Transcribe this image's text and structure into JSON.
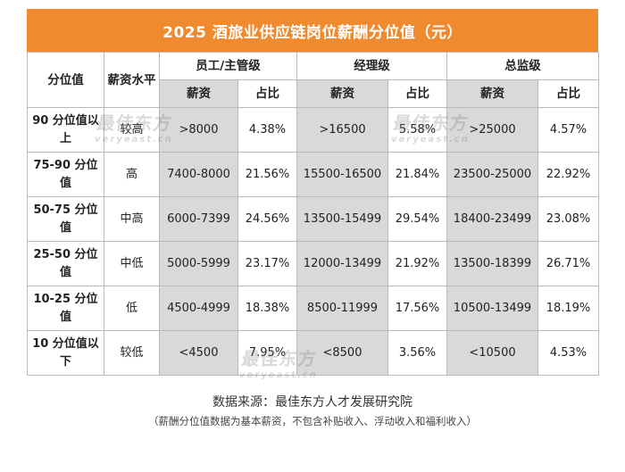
{
  "title": "2025 酒旅业供应链岗位薪酬分位值（元）",
  "header": {
    "percentile": "分位值",
    "level": "薪资水平",
    "groups": [
      "员工/主管级",
      "经理级",
      "总监级"
    ],
    "salary": "薪资",
    "ratio": "占比"
  },
  "rows": [
    {
      "percentile": "90 分位值以上",
      "level": "较高",
      "v": [
        ">8000",
        "4.38%",
        ">16500",
        "5.58%",
        ">25000",
        "4.57%"
      ]
    },
    {
      "percentile": "75-90 分位值",
      "level": "高",
      "v": [
        "7400-8000",
        "21.56%",
        "15500-16500",
        "21.84%",
        "23500-25000",
        "22.92%"
      ]
    },
    {
      "percentile": "50-75 分位值",
      "level": "中高",
      "v": [
        "6000-7399",
        "24.56%",
        "13500-15499",
        "29.54%",
        "18400-23499",
        "23.08%"
      ]
    },
    {
      "percentile": "25-50 分位值",
      "level": "中低",
      "v": [
        "5000-5999",
        "23.17%",
        "12000-13499",
        "21.92%",
        "13500-18399",
        "26.71%"
      ]
    },
    {
      "percentile": "10-25 分位值",
      "level": "低",
      "v": [
        "4500-4999",
        "18.38%",
        "8500-11999",
        "17.56%",
        "10500-13499",
        "18.19%"
      ]
    },
    {
      "percentile": "10 分位值以下",
      "level": "较低",
      "v": [
        "<4500",
        "7.95%",
        "<8500",
        "3.56%",
        "<10500",
        "4.53%"
      ]
    }
  ],
  "watermark": {
    "text": "最佳东方",
    "sub": "veryeast.cn"
  },
  "source": "数据来源：最佳东方人才发展研究院",
  "note": "（薪酬分位值数据为基本薪资，不包含补贴收入、浮动收入和福利收入）",
  "colors": {
    "title_bg": "#ef8a2e",
    "shade": "#d9d9d9"
  }
}
